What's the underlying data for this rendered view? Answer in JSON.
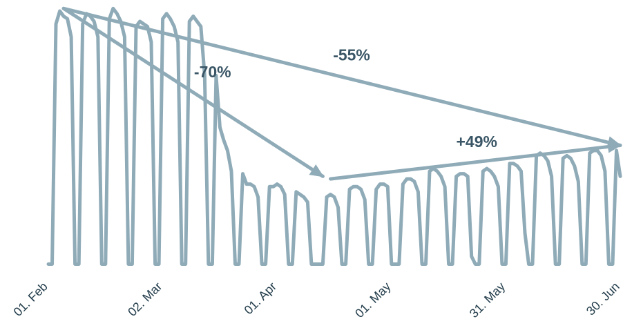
{
  "chart_data": {
    "type": "line",
    "title": "",
    "xlabel": "",
    "ylabel": "",
    "x_range": [
      "2020-02-01",
      "2020-06-30"
    ],
    "ylim": [
      0,
      100
    ],
    "grid": false,
    "legend": "none",
    "x_ticks": [
      {
        "date": "2020-02-01",
        "label": "01. Feb"
      },
      {
        "date": "2020-03-02",
        "label": "02. Mar"
      },
      {
        "date": "2020-04-01",
        "label": "01. Apr"
      },
      {
        "date": "2020-05-01",
        "label": "01. May"
      },
      {
        "date": "2020-05-31",
        "label": "31. May"
      },
      {
        "date": "2020-06-30",
        "label": "30. Jun"
      }
    ],
    "series": [
      {
        "color": "#8fabb8",
        "points": [
          [
            "2020-02-01",
            2
          ],
          [
            "2020-02-02",
            2
          ],
          [
            "2020-02-03",
            95
          ],
          [
            "2020-02-04",
            100
          ],
          [
            "2020-02-05",
            98
          ],
          [
            "2020-02-06",
            97
          ],
          [
            "2020-02-07",
            90
          ],
          [
            "2020-02-08",
            2
          ],
          [
            "2020-02-09",
            2
          ],
          [
            "2020-02-10",
            95
          ],
          [
            "2020-02-11",
            99
          ],
          [
            "2020-02-12",
            98
          ],
          [
            "2020-02-13",
            96
          ],
          [
            "2020-02-14",
            90
          ],
          [
            "2020-02-15",
            2
          ],
          [
            "2020-02-16",
            2
          ],
          [
            "2020-02-17",
            97
          ],
          [
            "2020-02-18",
            101
          ],
          [
            "2020-02-19",
            99
          ],
          [
            "2020-02-20",
            96
          ],
          [
            "2020-02-21",
            90
          ],
          [
            "2020-02-22",
            2
          ],
          [
            "2020-02-23",
            2
          ],
          [
            "2020-02-24",
            94
          ],
          [
            "2020-02-25",
            96
          ],
          [
            "2020-02-26",
            95
          ],
          [
            "2020-02-27",
            94
          ],
          [
            "2020-02-28",
            88
          ],
          [
            "2020-02-29",
            2
          ],
          [
            "2020-03-01",
            2
          ],
          [
            "2020-03-02",
            97
          ],
          [
            "2020-03-03",
            99
          ],
          [
            "2020-03-04",
            97
          ],
          [
            "2020-03-05",
            94
          ],
          [
            "2020-03-06",
            88
          ],
          [
            "2020-03-07",
            2
          ],
          [
            "2020-03-08",
            2
          ],
          [
            "2020-03-09",
            96
          ],
          [
            "2020-03-10",
            98
          ],
          [
            "2020-03-11",
            96
          ],
          [
            "2020-03-12",
            94
          ],
          [
            "2020-03-13",
            75
          ],
          [
            "2020-03-14",
            2
          ],
          [
            "2020-03-15",
            2
          ],
          [
            "2020-03-16",
            75
          ],
          [
            "2020-03-17",
            55
          ],
          [
            "2020-03-18",
            50
          ],
          [
            "2020-03-19",
            46
          ],
          [
            "2020-03-20",
            38
          ],
          [
            "2020-03-21",
            2
          ],
          [
            "2020-03-22",
            2
          ],
          [
            "2020-03-23",
            37
          ],
          [
            "2020-03-24",
            33
          ],
          [
            "2020-03-25",
            33
          ],
          [
            "2020-03-26",
            32
          ],
          [
            "2020-03-27",
            28
          ],
          [
            "2020-03-28",
            2
          ],
          [
            "2020-03-29",
            2
          ],
          [
            "2020-03-30",
            32
          ],
          [
            "2020-03-31",
            32
          ],
          [
            "2020-04-01",
            33
          ],
          [
            "2020-04-02",
            32
          ],
          [
            "2020-04-03",
            29
          ],
          [
            "2020-04-04",
            2
          ],
          [
            "2020-04-05",
            2
          ],
          [
            "2020-04-06",
            30
          ],
          [
            "2020-04-07",
            29
          ],
          [
            "2020-04-08",
            28
          ],
          [
            "2020-04-09",
            26
          ],
          [
            "2020-04-10",
            2
          ],
          [
            "2020-04-11",
            2
          ],
          [
            "2020-04-12",
            2
          ],
          [
            "2020-04-13",
            2
          ],
          [
            "2020-04-14",
            28
          ],
          [
            "2020-04-15",
            29
          ],
          [
            "2020-04-16",
            28
          ],
          [
            "2020-04-17",
            24
          ],
          [
            "2020-04-18",
            2
          ],
          [
            "2020-04-19",
            2
          ],
          [
            "2020-04-20",
            31
          ],
          [
            "2020-04-21",
            32
          ],
          [
            "2020-04-22",
            32
          ],
          [
            "2020-04-23",
            31
          ],
          [
            "2020-04-24",
            27
          ],
          [
            "2020-04-25",
            2
          ],
          [
            "2020-04-26",
            2
          ],
          [
            "2020-04-27",
            31
          ],
          [
            "2020-04-28",
            33
          ],
          [
            "2020-04-29",
            33
          ],
          [
            "2020-04-30",
            32
          ],
          [
            "2020-05-01",
            2
          ],
          [
            "2020-05-02",
            2
          ],
          [
            "2020-05-03",
            2
          ],
          [
            "2020-05-04",
            33
          ],
          [
            "2020-05-05",
            35
          ],
          [
            "2020-05-06",
            35
          ],
          [
            "2020-05-07",
            34
          ],
          [
            "2020-05-08",
            30
          ],
          [
            "2020-05-09",
            2
          ],
          [
            "2020-05-10",
            2
          ],
          [
            "2020-05-11",
            38
          ],
          [
            "2020-05-12",
            39
          ],
          [
            "2020-05-13",
            38
          ],
          [
            "2020-05-14",
            36
          ],
          [
            "2020-05-15",
            32
          ],
          [
            "2020-05-16",
            2
          ],
          [
            "2020-05-17",
            2
          ],
          [
            "2020-05-18",
            36
          ],
          [
            "2020-05-19",
            37
          ],
          [
            "2020-05-20",
            37
          ],
          [
            "2020-05-21",
            36
          ],
          [
            "2020-05-22",
            5
          ],
          [
            "2020-05-23",
            2
          ],
          [
            "2020-05-24",
            2
          ],
          [
            "2020-05-25",
            38
          ],
          [
            "2020-05-26",
            39
          ],
          [
            "2020-05-27",
            38
          ],
          [
            "2020-05-28",
            36
          ],
          [
            "2020-05-29",
            32
          ],
          [
            "2020-05-30",
            2
          ],
          [
            "2020-05-31",
            2
          ],
          [
            "2020-06-01",
            41
          ],
          [
            "2020-06-02",
            41
          ],
          [
            "2020-06-03",
            40
          ],
          [
            "2020-06-04",
            38
          ],
          [
            "2020-06-05",
            14
          ],
          [
            "2020-06-06",
            2
          ],
          [
            "2020-06-07",
            2
          ],
          [
            "2020-06-08",
            44
          ],
          [
            "2020-06-09",
            45
          ],
          [
            "2020-06-10",
            44
          ],
          [
            "2020-06-11",
            42
          ],
          [
            "2020-06-12",
            36
          ],
          [
            "2020-06-13",
            2
          ],
          [
            "2020-06-14",
            2
          ],
          [
            "2020-06-15",
            43
          ],
          [
            "2020-06-16",
            44
          ],
          [
            "2020-06-17",
            43
          ],
          [
            "2020-06-18",
            40
          ],
          [
            "2020-06-19",
            34
          ],
          [
            "2020-06-20",
            2
          ],
          [
            "2020-06-21",
            2
          ],
          [
            "2020-06-22",
            45
          ],
          [
            "2020-06-23",
            46
          ],
          [
            "2020-06-24",
            46
          ],
          [
            "2020-06-25",
            44
          ],
          [
            "2020-06-26",
            38
          ],
          [
            "2020-06-27",
            2
          ],
          [
            "2020-06-28",
            2
          ],
          [
            "2020-06-29",
            46
          ],
          [
            "2020-06-30",
            36
          ]
        ]
      }
    ],
    "annotations": [
      {
        "label": "-55%",
        "from": [
          "2020-02-05",
          101
        ],
        "to": [
          "2020-06-30",
          48
        ]
      },
      {
        "label": "-70%",
        "from": [
          "2020-02-05",
          101
        ],
        "to": [
          "2020-04-13",
          36
        ]
      },
      {
        "label": "+49%",
        "from": [
          "2020-04-15",
          35
        ],
        "to": [
          "2020-06-30",
          48
        ]
      }
    ]
  }
}
